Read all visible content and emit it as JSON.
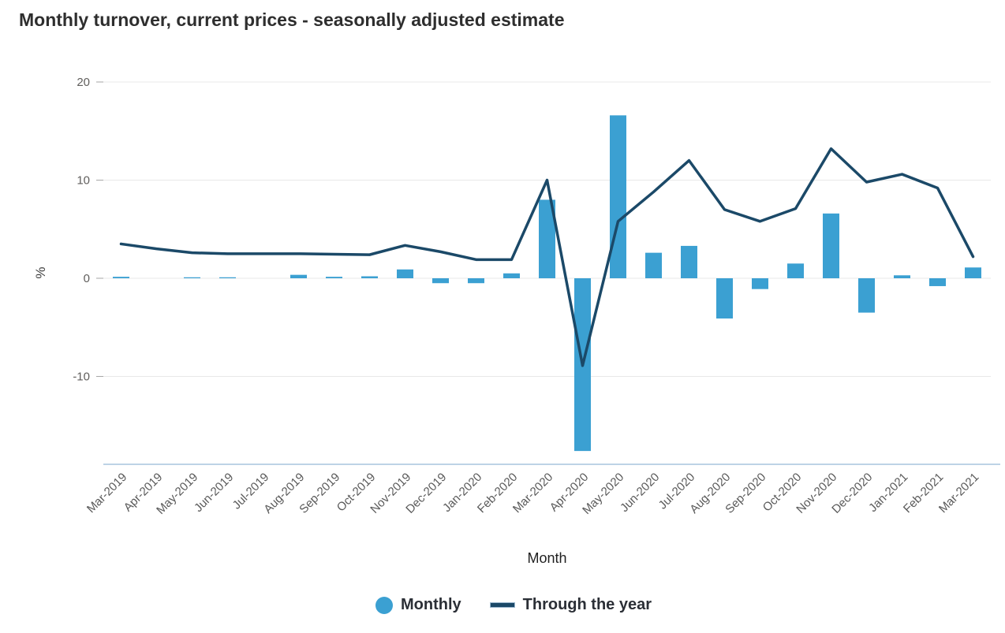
{
  "chart_data": {
    "type": "bar",
    "title": "Monthly turnover, current prices - seasonally adjusted estimate",
    "xlabel": "Month",
    "ylabel": "%",
    "ylim": [
      -19,
      20
    ],
    "yticks": [
      20,
      10,
      0,
      -10
    ],
    "grid": true,
    "legend_position": "bottom",
    "categories": [
      "Mar-2019",
      "Apr-2019",
      "May-2019",
      "Jun-2019",
      "Jul-2019",
      "Aug-2019",
      "Sep-2019",
      "Oct-2019",
      "Nov-2019",
      "Dec-2019",
      "Jan-2020",
      "Feb-2020",
      "Mar-2020",
      "Apr-2020",
      "May-2020",
      "Jun-2020",
      "Jul-2020",
      "Aug-2020",
      "Sep-2020",
      "Oct-2020",
      "Nov-2020",
      "Dec-2020",
      "Jan-2021",
      "Feb-2021",
      "Mar-2021"
    ],
    "series": [
      {
        "name": "Monthly",
        "type": "bar",
        "color": "#3ba0d2",
        "values": [
          0.15,
          0.0,
          0.1,
          0.1,
          0.0,
          0.35,
          0.15,
          0.2,
          0.9,
          -0.5,
          -0.5,
          0.5,
          8.0,
          -17.6,
          16.6,
          2.6,
          3.3,
          -4.1,
          -1.1,
          1.5,
          6.6,
          -3.5,
          0.3,
          -0.8,
          1.1
        ]
      },
      {
        "name": "Through the year",
        "type": "line",
        "color": "#1b4968",
        "values": [
          3.5,
          3.0,
          2.6,
          2.5,
          2.5,
          2.5,
          2.45,
          2.4,
          3.35,
          2.7,
          1.9,
          1.9,
          10.0,
          -8.9,
          5.8,
          8.8,
          12.0,
          7.0,
          5.8,
          7.1,
          13.2,
          9.8,
          10.6,
          9.2,
          2.2
        ]
      }
    ]
  }
}
